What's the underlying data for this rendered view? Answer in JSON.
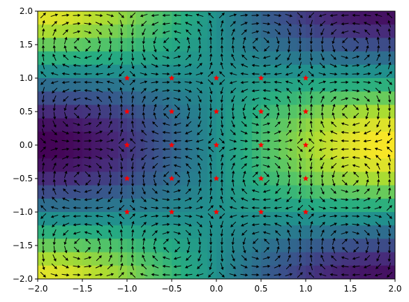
{
  "chart_data": {
    "type": "heatmap",
    "subtype": "heatmap with quiver (vector field) overlay and star markers",
    "title": "",
    "xlabel": "",
    "ylabel": "",
    "xlim": [
      -2.0,
      2.0
    ],
    "ylim": [
      -2.0,
      2.0
    ],
    "x_ticks": [
      -2.0,
      -1.5,
      -1.0,
      -0.5,
      0.0,
      0.5,
      1.0,
      1.5,
      2.0
    ],
    "x_tick_labels": [
      "−2.0",
      "−1.5",
      "−1.0",
      "−0.5",
      "0.0",
      "0.5",
      "1.0",
      "1.5",
      "2.0"
    ],
    "y_ticks": [
      -2.0,
      -1.5,
      -1.0,
      -0.5,
      0.0,
      0.5,
      1.0,
      1.5,
      2.0
    ],
    "y_tick_labels": [
      "−2.0",
      "−1.5",
      "−1.0",
      "−0.5",
      "0.0",
      "0.5",
      "1.0",
      "1.5",
      "2.0"
    ],
    "grid": false,
    "colormap": "viridis",
    "heatmap_resolution": [
      40,
      20
    ],
    "quiver_grid_n": 32,
    "markers": {
      "style": "star",
      "color": "#ff0000",
      "points": [
        [
          -1.0,
          1.0
        ],
        [
          -0.5,
          1.0
        ],
        [
          0.0,
          1.0
        ],
        [
          0.5,
          1.0
        ],
        [
          1.0,
          1.0
        ],
        [
          -1.0,
          0.5
        ],
        [
          -0.5,
          0.5
        ],
        [
          0.0,
          0.5
        ],
        [
          0.5,
          0.5
        ],
        [
          1.0,
          0.5
        ],
        [
          -1.0,
          0.0
        ],
        [
          -0.5,
          0.0
        ],
        [
          0.0,
          0.0
        ],
        [
          0.5,
          0.0
        ],
        [
          1.0,
          0.0
        ],
        [
          -1.0,
          -0.5
        ],
        [
          -0.5,
          -0.5
        ],
        [
          0.0,
          -0.5
        ],
        [
          0.5,
          -0.5
        ],
        [
          1.0,
          -0.5
        ],
        [
          -1.0,
          -1.0
        ],
        [
          -0.5,
          -1.0
        ],
        [
          0.0,
          -1.0
        ],
        [
          0.5,
          -1.0
        ],
        [
          1.0,
          -1.0
        ]
      ]
    },
    "quiver_color": "#000000"
  }
}
